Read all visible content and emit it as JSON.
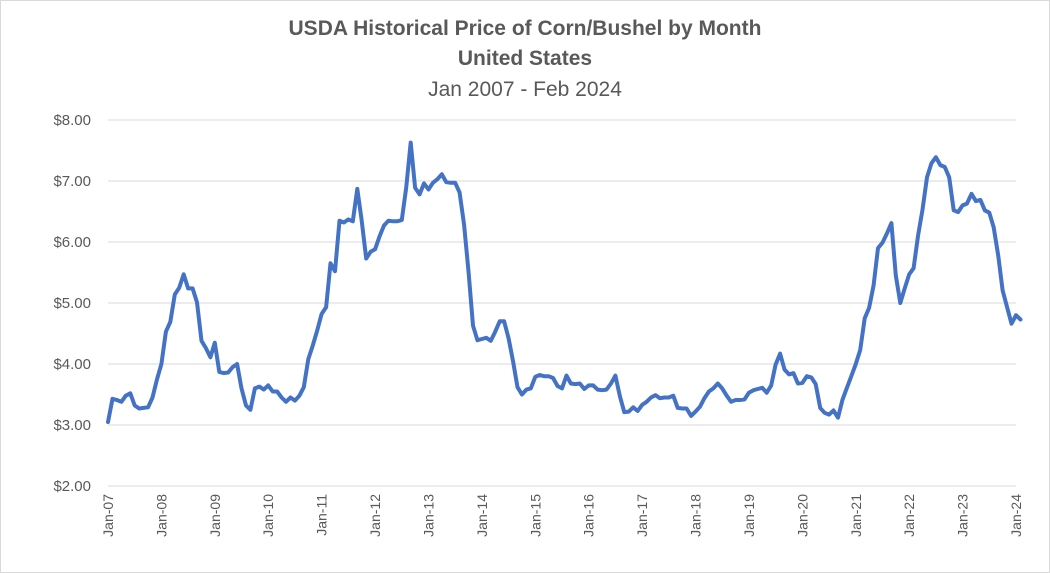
{
  "chart_data": {
    "type": "line",
    "title": "USDA Historical Price of Corn/Bushel by Month",
    "subtitle": "United States",
    "subtitle2": "Jan 2007 - Feb 2024",
    "xlabel": "",
    "ylabel": "",
    "ylim": [
      2,
      8
    ],
    "y_ticks": [
      "$2.00",
      "$3.00",
      "$4.00",
      "$5.00",
      "$6.00",
      "$7.00",
      "$8.00"
    ],
    "x_ticks": [
      "Jan-07",
      "Jan-08",
      "Jan-09",
      "Jan-10",
      "Jan-11",
      "Jan-12",
      "Jan-13",
      "Jan-14",
      "Jan-15",
      "Jan-16",
      "Jan-17",
      "Jan-18",
      "Jan-19",
      "Jan-20",
      "Jan-21",
      "Jan-22",
      "Jan-23",
      "Jan-24"
    ],
    "grid": true,
    "legend": "none",
    "line_color": "#4472c4",
    "series": [
      {
        "name": "",
        "x_start": "Jan-07",
        "frequency": "monthly",
        "values": [
          3.05,
          3.43,
          3.41,
          3.38,
          3.48,
          3.52,
          3.32,
          3.27,
          3.28,
          3.29,
          3.45,
          3.75,
          4.0,
          4.53,
          4.69,
          5.14,
          5.25,
          5.47,
          5.24,
          5.24,
          5.01,
          4.38,
          4.26,
          4.11,
          4.35,
          3.87,
          3.85,
          3.86,
          3.95,
          4.0,
          3.6,
          3.32,
          3.25,
          3.6,
          3.63,
          3.58,
          3.65,
          3.55,
          3.55,
          3.45,
          3.38,
          3.45,
          3.4,
          3.48,
          3.62,
          4.08,
          4.3,
          4.55,
          4.82,
          4.93,
          5.65,
          5.52,
          6.35,
          6.32,
          6.37,
          6.34,
          6.87,
          6.35,
          5.73,
          5.84,
          5.88,
          6.09,
          6.27,
          6.35,
          6.34,
          6.34,
          6.36,
          6.89,
          7.63,
          6.89,
          6.78,
          6.96,
          6.86,
          6.97,
          7.03,
          7.11,
          6.98,
          6.97,
          6.97,
          6.81,
          6.28,
          5.52,
          4.63,
          4.39,
          4.41,
          4.43,
          4.38,
          4.53,
          4.7,
          4.7,
          4.42,
          4.05,
          3.62,
          3.5,
          3.58,
          3.6,
          3.79,
          3.82,
          3.8,
          3.8,
          3.77,
          3.64,
          3.6,
          3.81,
          3.68,
          3.67,
          3.68,
          3.59,
          3.65,
          3.65,
          3.58,
          3.57,
          3.58,
          3.68,
          3.81,
          3.47,
          3.21,
          3.22,
          3.29,
          3.23,
          3.33,
          3.38,
          3.45,
          3.49,
          3.44,
          3.45,
          3.45,
          3.48,
          3.28,
          3.27,
          3.27,
          3.15,
          3.22,
          3.3,
          3.44,
          3.55,
          3.6,
          3.68,
          3.6,
          3.48,
          3.38,
          3.41,
          3.41,
          3.42,
          3.53,
          3.57,
          3.59,
          3.61,
          3.53,
          3.65,
          3.99,
          4.17,
          3.91,
          3.83,
          3.85,
          3.68,
          3.69,
          3.8,
          3.78,
          3.67,
          3.28,
          3.2,
          3.17,
          3.24,
          3.12,
          3.41,
          3.61,
          3.8,
          4.0,
          4.23,
          4.75,
          4.92,
          5.29,
          5.9,
          5.99,
          6.14,
          6.31,
          5.45,
          5.0,
          5.24,
          5.47,
          5.57,
          6.11,
          6.53,
          7.06,
          7.29,
          7.39,
          7.26,
          7.23,
          7.06,
          6.52,
          6.49,
          6.6,
          6.63,
          6.79,
          6.67,
          6.69,
          6.52,
          6.48,
          6.24,
          5.78,
          5.21,
          4.93,
          4.66,
          4.8,
          4.73
        ]
      }
    ]
  }
}
